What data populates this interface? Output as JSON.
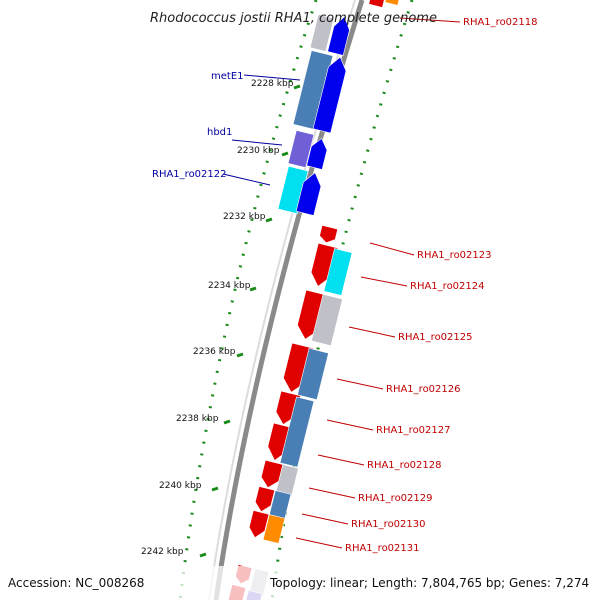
{
  "title": "Rhodococcus jostii RHA1, complete genome",
  "footer": {
    "accession": "Accession: NC_008268",
    "summary": "Topology: linear; Length: 7,804,765 bp; Genes: 7,274"
  },
  "ticks": [
    "2228 kbp",
    "2230 kbp",
    "2232 kbp",
    "2234 kbp",
    "2236 kbp",
    "2238 kbp",
    "2240 kbp",
    "2242 kbp"
  ],
  "left_labels": [
    "metE1",
    "hbd1",
    "RHA1_ro02122"
  ],
  "right_labels": [
    "RHA1_ro02118",
    "RHA1_ro02123",
    "RHA1_ro02124",
    "RHA1_ro02125",
    "RHA1_ro02126",
    "RHA1_ro02127",
    "RHA1_ro02128",
    "RHA1_ro02129",
    "RHA1_ro02130",
    "RHA1_ro02131"
  ],
  "colors": {
    "forward_cds": "#e00000",
    "reverse_cds": "#0000ee",
    "feature_blue": "#4a7fb5",
    "feature_grey": "#c0c0c8",
    "feature_cyan": "#00e0f0",
    "feature_purple": "#7060d8",
    "feature_orange": "#ff8c00",
    "label_red": "#c00000",
    "label_blue": "#0000a0",
    "tick_green": "#1a8a1a"
  }
}
